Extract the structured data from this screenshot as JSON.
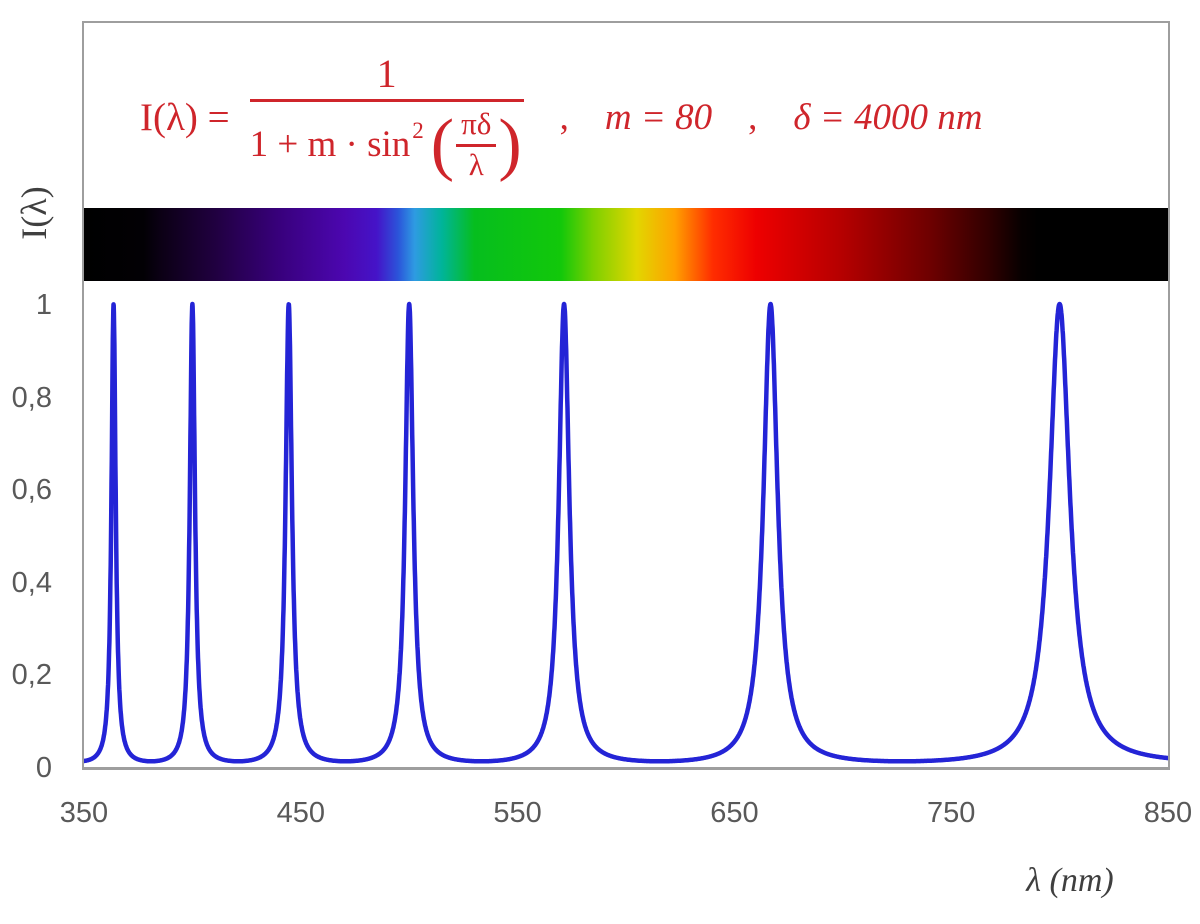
{
  "chart_data": {
    "type": "line",
    "formula_text": "I(λ) = 1 / (1 + m·sin²(πδ/λ))",
    "params": {
      "m": 80,
      "delta_nm": 4000
    },
    "xlabel": "λ  (nm)",
    "ylabel": "I(λ)",
    "x_range_nm": [
      350,
      850
    ],
    "y_range": [
      0,
      1
    ],
    "x_ticks": [
      {
        "label": "350",
        "value": 350
      },
      {
        "label": "450",
        "value": 450
      },
      {
        "label": "550",
        "value": 550
      },
      {
        "label": "650",
        "value": 650
      },
      {
        "label": "750",
        "value": 750
      },
      {
        "label": "850",
        "value": 850
      }
    ],
    "y_ticks": [
      {
        "label": "1",
        "value": 1.0
      },
      {
        "label": "0,8",
        "value": 0.8
      },
      {
        "label": "0,6",
        "value": 0.6
      },
      {
        "label": "0,4",
        "value": 0.4
      },
      {
        "label": "0,2",
        "value": 0.2
      },
      {
        "label": "0",
        "value": 0.0
      }
    ],
    "peak_wavelengths_nm": [
      363.6,
      400,
      444.4,
      500,
      571.4,
      666.7,
      800
    ],
    "peak_intensity": 1.0,
    "baseline_intensity": 0.012,
    "curve_color": "#2424D6",
    "grid": false,
    "legend": false,
    "spectrum_bar": {
      "visible_range_nm": [
        380,
        780
      ],
      "stops": [
        {
          "pos": 0,
          "color": "#000000"
        },
        {
          "pos": 5.5,
          "color": "#020004"
        },
        {
          "pos": 7,
          "color": "#0B0014"
        },
        {
          "pos": 12,
          "color": "#20003F"
        },
        {
          "pos": 18,
          "color": "#38007C"
        },
        {
          "pos": 24,
          "color": "#4C07B0"
        },
        {
          "pos": 27,
          "color": "#4513C8"
        },
        {
          "pos": 29,
          "color": "#2B55DA"
        },
        {
          "pos": 30.5,
          "color": "#2E9BE2"
        },
        {
          "pos": 33,
          "color": "#00B49A"
        },
        {
          "pos": 36,
          "color": "#06BE1E"
        },
        {
          "pos": 44,
          "color": "#12C80A"
        },
        {
          "pos": 47,
          "color": "#7ED000"
        },
        {
          "pos": 51,
          "color": "#E2D600"
        },
        {
          "pos": 54.5,
          "color": "#FFA000"
        },
        {
          "pos": 58,
          "color": "#FF2D00"
        },
        {
          "pos": 62,
          "color": "#EE0000"
        },
        {
          "pos": 70,
          "color": "#B40000"
        },
        {
          "pos": 78,
          "color": "#6E0000"
        },
        {
          "pos": 83.5,
          "color": "#300000"
        },
        {
          "pos": 86.5,
          "color": "#070000"
        },
        {
          "pos": 88,
          "color": "#000000"
        },
        {
          "pos": 100,
          "color": "#000000"
        }
      ]
    }
  },
  "formula": {
    "color": "#CF252B",
    "lhs": "I(λ) =",
    "numerator": "1",
    "den_prefix": "1 + m · sin",
    "den_sup": "2",
    "paren_open": "(",
    "inner_numerator": "πδ",
    "inner_denominator": "λ",
    "paren_close": ")",
    "comma1": ",",
    "param_m": "m = 80",
    "comma2": ",",
    "param_delta": "δ = 4000 nm"
  }
}
